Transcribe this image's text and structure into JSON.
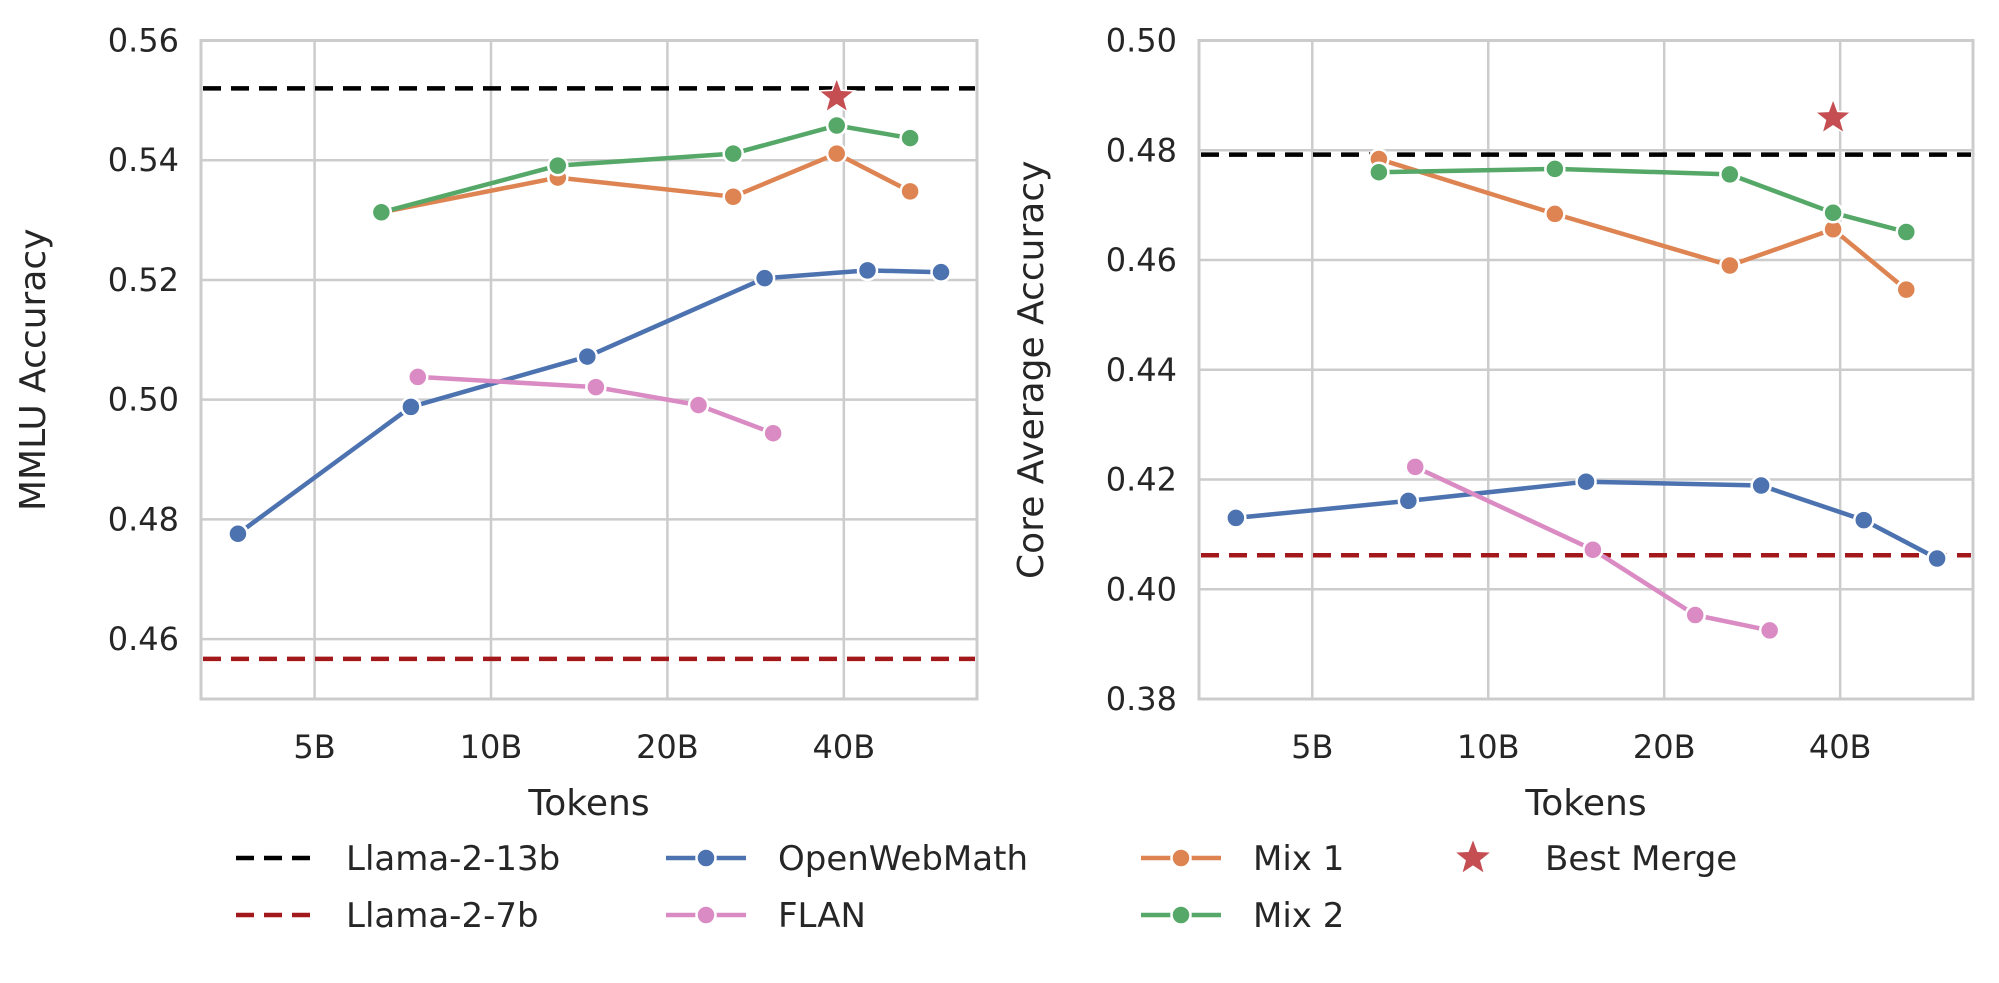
{
  "chart_data": [
    {
      "type": "line",
      "panel": "left",
      "title": "",
      "xlabel": "Tokens",
      "ylabel": "MMLU Accuracy",
      "xscale": "log2",
      "xlim": [
        3.2,
        67.5
      ],
      "ylim": [
        0.45,
        0.56
      ],
      "xticks": [
        {
          "value": 5,
          "label": "5B"
        },
        {
          "value": 10,
          "label": "10B"
        },
        {
          "value": 20,
          "label": "20B"
        },
        {
          "value": 40,
          "label": "40B"
        }
      ],
      "yticks": [
        {
          "value": 0.46,
          "label": "0.46"
        },
        {
          "value": 0.48,
          "label": "0.48"
        },
        {
          "value": 0.5,
          "label": "0.50"
        },
        {
          "value": 0.52,
          "label": "0.52"
        },
        {
          "value": 0.54,
          "label": "0.54"
        },
        {
          "value": 0.56,
          "label": "0.56"
        }
      ],
      "grid": true,
      "hlines": [
        {
          "name": "Llama-2-13b",
          "value": 0.552,
          "color": "#000000"
        },
        {
          "name": "Llama-2-7b",
          "value": 0.4567,
          "color": "#a3191b"
        }
      ],
      "series": [
        {
          "name": "OpenWebMath",
          "color": "#4c72b0",
          "x": [
            3.7,
            7.3,
            14.6,
            29.3,
            43.9,
            58.6
          ],
          "y": [
            0.4776,
            0.4988,
            0.5072,
            0.5203,
            0.5216,
            0.5213
          ]
        },
        {
          "name": "FLAN",
          "color": "#da8bc3",
          "x": [
            7.5,
            15.1,
            22.6,
            30.3
          ],
          "y": [
            0.5038,
            0.5021,
            0.4991,
            0.4944
          ]
        },
        {
          "name": "Mix 1",
          "color": "#dd8452",
          "x": [
            6.5,
            13.0,
            25.9,
            38.9,
            51.9
          ],
          "y": [
            0.5313,
            0.5371,
            0.5339,
            0.5411,
            0.5348
          ]
        },
        {
          "name": "Mix 2",
          "color": "#55a868",
          "x": [
            6.5,
            13.0,
            25.9,
            38.9,
            51.9
          ],
          "y": [
            0.5313,
            0.5391,
            0.5411,
            0.5458,
            0.5437
          ]
        }
      ],
      "points": [
        {
          "name": "Best Merge",
          "color": "#c44e52",
          "marker": "star",
          "x": 38.9,
          "y": 0.5506
        }
      ]
    },
    {
      "type": "line",
      "panel": "right",
      "title": "",
      "xlabel": "Tokens",
      "ylabel": "Core Average Accuracy",
      "xscale": "log2",
      "xlim": [
        3.2,
        67.5
      ],
      "ylim": [
        0.38,
        0.5
      ],
      "xticks": [
        {
          "value": 5,
          "label": "5B"
        },
        {
          "value": 10,
          "label": "10B"
        },
        {
          "value": 20,
          "label": "20B"
        },
        {
          "value": 40,
          "label": "40B"
        }
      ],
      "yticks": [
        {
          "value": 0.38,
          "label": "0.38"
        },
        {
          "value": 0.4,
          "label": "0.40"
        },
        {
          "value": 0.42,
          "label": "0.42"
        },
        {
          "value": 0.44,
          "label": "0.44"
        },
        {
          "value": 0.46,
          "label": "0.46"
        },
        {
          "value": 0.48,
          "label": "0.48"
        },
        {
          "value": 0.5,
          "label": "0.50"
        }
      ],
      "grid": true,
      "hlines": [
        {
          "name": "Llama-2-13b",
          "value": 0.4792,
          "color": "#000000"
        },
        {
          "name": "Llama-2-7b",
          "value": 0.4062,
          "color": "#a3191b"
        }
      ],
      "series": [
        {
          "name": "OpenWebMath",
          "color": "#4c72b0",
          "x": [
            3.7,
            7.3,
            14.7,
            29.3,
            43.9,
            58.6
          ],
          "y": [
            0.413,
            0.4161,
            0.4196,
            0.4189,
            0.4126,
            0.4056
          ]
        },
        {
          "name": "FLAN",
          "color": "#da8bc3",
          "x": [
            7.5,
            15.1,
            22.6,
            30.3
          ],
          "y": [
            0.4223,
            0.4072,
            0.3953,
            0.3925
          ]
        },
        {
          "name": "Mix 1",
          "color": "#dd8452",
          "x": [
            6.5,
            13.0,
            25.9,
            38.9,
            51.9
          ],
          "y": [
            0.4784,
            0.4684,
            0.459,
            0.4656,
            0.4546
          ]
        },
        {
          "name": "Mix 2",
          "color": "#55a868",
          "x": [
            6.5,
            13.0,
            25.9,
            38.9,
            51.9
          ],
          "y": [
            0.476,
            0.4766,
            0.4756,
            0.4686,
            0.4651
          ]
        }
      ],
      "points": [
        {
          "name": "Best Merge",
          "color": "#c44e52",
          "marker": "star",
          "x": 38.9,
          "y": 0.4859
        }
      ]
    }
  ],
  "legend": {
    "placement": "bottom",
    "items": [
      {
        "label": "Llama-2-13b",
        "kind": "dashed",
        "color": "#000000"
      },
      {
        "label": "Llama-2-7b",
        "kind": "dashed",
        "color": "#a3191b"
      },
      {
        "label": "OpenWebMath",
        "kind": "line-marker",
        "color": "#4c72b0"
      },
      {
        "label": "FLAN",
        "kind": "line-marker",
        "color": "#da8bc3"
      },
      {
        "label": "Mix 1",
        "kind": "line-marker",
        "color": "#dd8452"
      },
      {
        "label": "Mix 2",
        "kind": "line-marker",
        "color": "#55a868"
      },
      {
        "label": "Best Merge",
        "kind": "star",
        "color": "#c44e52"
      }
    ]
  }
}
